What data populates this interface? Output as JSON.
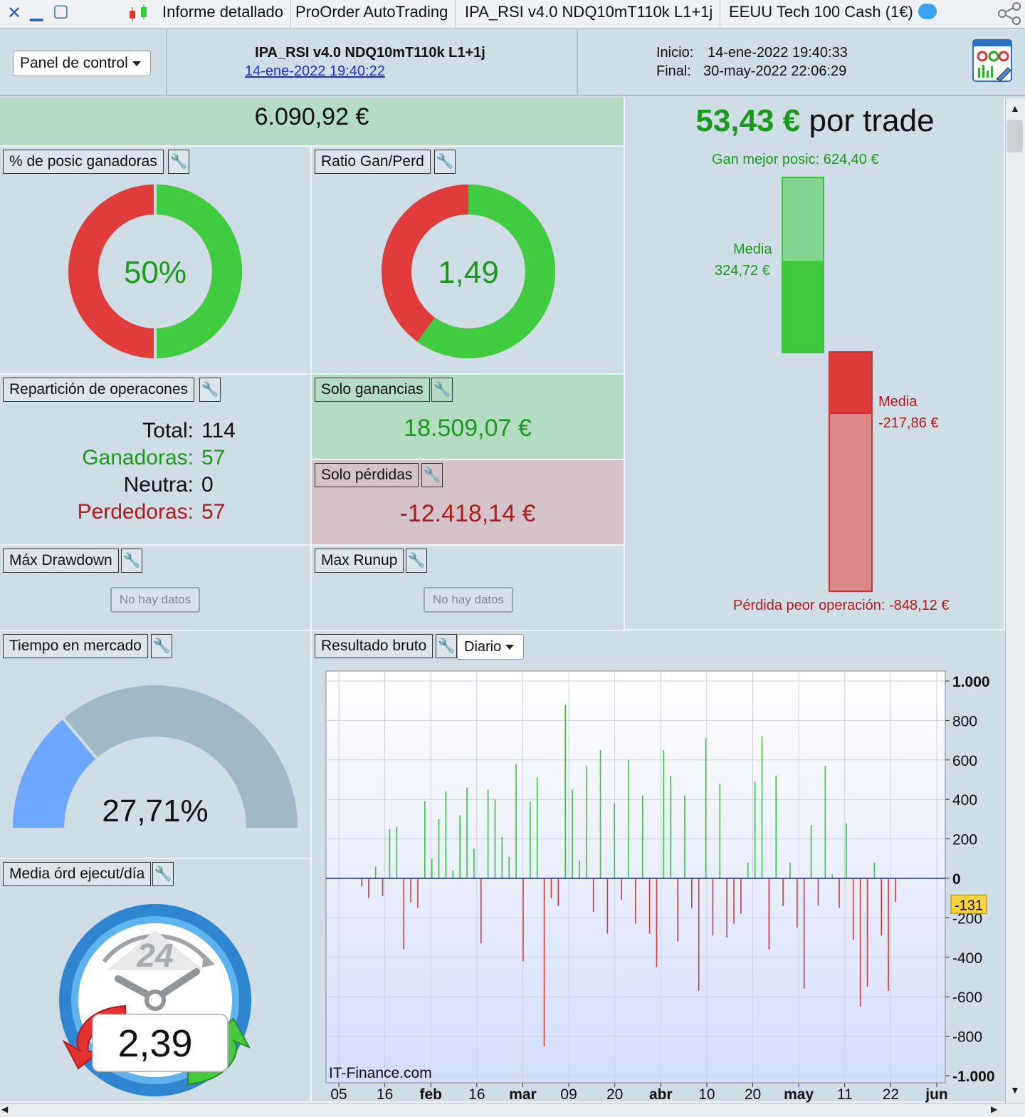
{
  "titlebar": {
    "tabs": [
      "Informe detallado",
      "ProOrder AutoTrading",
      "IPA_RSI v4.0 NDQ10mT110k L1+1j",
      "EEUU Tech 100 Cash (1€)"
    ]
  },
  "header": {
    "panel_button": "Panel de control",
    "strategy_name": "IPA_RSI v4.0 NDQ10mT110k L1+1j",
    "strategy_date": "14-ene-2022 19:40:22",
    "inicio_label": "Inicio:",
    "inicio_value": "14-ene-2022 19:40:33",
    "final_label": "Final:",
    "final_value": "30-may-2022 22:06:29"
  },
  "summary": {
    "total_result": "6.090,92 €"
  },
  "win_pct": {
    "title": "% de posic ganadoras",
    "value": "50%",
    "fraction": 0.5
  },
  "ratio": {
    "title": "Ratio Gan/Perd",
    "value": "1,49",
    "green_fraction": 0.6
  },
  "per_trade": {
    "value": "53,43 €",
    "suffix": "por trade",
    "best_label": "Gan mejor posic: 624,40 €",
    "avg_win_label": "Media",
    "avg_win_value": "324,72 €",
    "avg_loss_label": "Media",
    "avg_loss_value": "-217,86 €",
    "worst_label": "Pérdida peor operación: -848,12 €"
  },
  "breakdown": {
    "title": "Repartición de operacones",
    "total_label": "Total:",
    "total": "114",
    "win_label": "Ganadoras:",
    "win": "57",
    "neutral_label": "Neutra:",
    "neutral": "0",
    "loss_label": "Perdedoras:",
    "loss": "57"
  },
  "gains": {
    "title": "Solo ganancias",
    "value": "18.509,07 €"
  },
  "losses": {
    "title": "Solo pérdidas",
    "value": "-12.418,14 €"
  },
  "drawdown": {
    "title": "Máx Drawdown",
    "nodata": "No hay datos"
  },
  "runup": {
    "title": "Max Runup",
    "nodata": "No hay datos"
  },
  "market_time": {
    "title": "Tiempo en mercado",
    "value": "27,71%",
    "fraction": 0.2771
  },
  "orders_day": {
    "title": "Media órd ejecut/día",
    "value": "2,39",
    "clock_label": "24"
  },
  "gross": {
    "title": "Resultado bruto",
    "period": "Diario",
    "watermark": "IT-Finance.com",
    "current_label": "-131",
    "colors": {
      "win": "#3cc23c",
      "loss": "#d03a3a",
      "zero": "#1a2aa8"
    }
  },
  "chart_data": {
    "type": "bar",
    "title": "",
    "ylim": [
      -1000,
      1000
    ],
    "y_ticks": [
      "1.000",
      "800",
      "600",
      "400",
      "200",
      "0",
      "-200",
      "-400",
      "-600",
      "-800",
      "-1.000"
    ],
    "x_ticks": [
      "05",
      "16",
      "feb",
      "16",
      "mar",
      "09",
      "20",
      "abr",
      "10",
      "20",
      "may",
      "11",
      "22",
      "jun"
    ],
    "values": [
      -40,
      -100,
      60,
      -90,
      250,
      260,
      -360,
      -120,
      -150,
      390,
      100,
      300,
      440,
      40,
      320,
      460,
      150,
      -330,
      450,
      400,
      210,
      110,
      580,
      -420,
      390,
      510,
      -850,
      -100,
      -140,
      880,
      450,
      90,
      570,
      -170,
      650,
      -280,
      380,
      -110,
      600,
      -230,
      420,
      -280,
      -450,
      650,
      520,
      -320,
      420,
      -150,
      -570,
      710,
      -290,
      480,
      -300,
      -230,
      -180,
      80,
      490,
      720,
      -360,
      520,
      -140,
      80,
      -250,
      -560,
      270,
      -140,
      570,
      20,
      -150,
      280,
      -310,
      -650,
      -550,
      80,
      -290,
      -570,
      -120
    ]
  }
}
